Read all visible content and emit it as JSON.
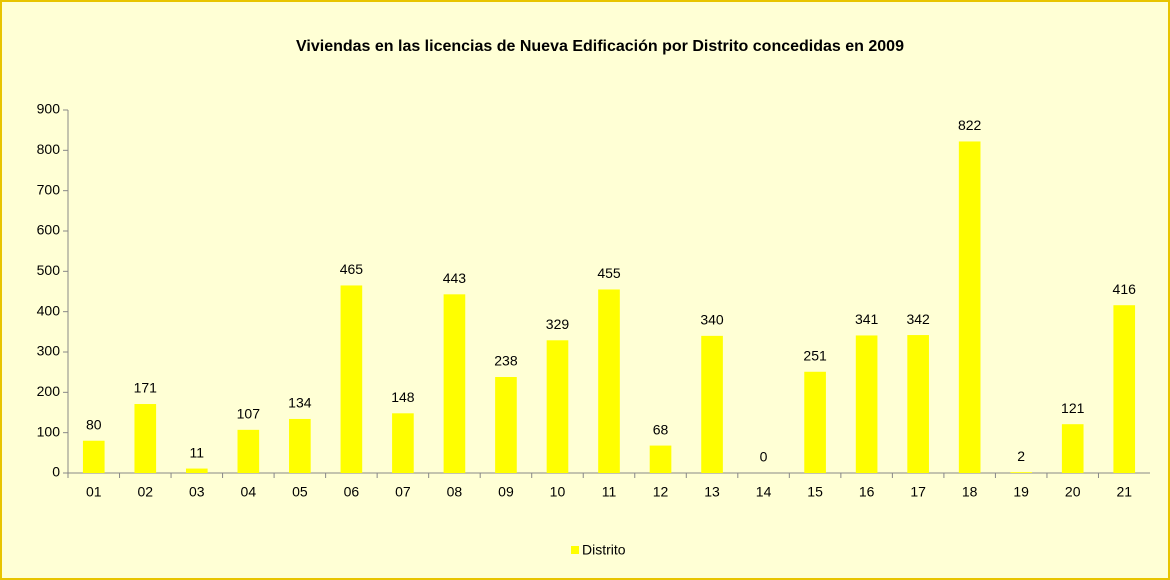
{
  "chart_data": {
    "type": "bar",
    "title": "Viviendas en las licencias de Nueva Edificación por Distrito concedidas en 2009",
    "categories": [
      "01",
      "02",
      "03",
      "04",
      "05",
      "06",
      "07",
      "08",
      "09",
      "10",
      "11",
      "12",
      "13",
      "14",
      "15",
      "16",
      "17",
      "18",
      "19",
      "20",
      "21"
    ],
    "series": [
      {
        "name": "Distrito",
        "color": "#ffff00",
        "values": [
          80,
          171,
          11,
          107,
          134,
          465,
          148,
          443,
          238,
          329,
          455,
          68,
          340,
          0,
          251,
          341,
          342,
          822,
          2,
          121,
          416
        ]
      }
    ],
    "ylim": [
      0,
      900
    ],
    "yticks": [
      0,
      100,
      200,
      300,
      400,
      500,
      600,
      700,
      800,
      900
    ],
    "grid": false,
    "legend": "bottom",
    "background": "#ffffd5"
  }
}
